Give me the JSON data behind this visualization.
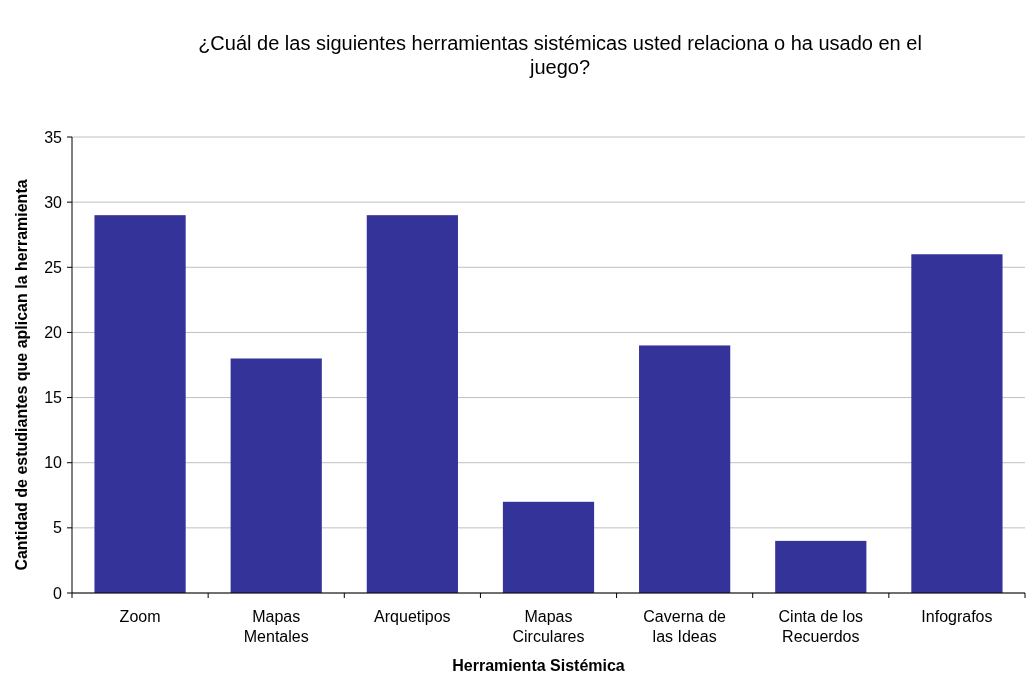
{
  "chart_data": {
    "type": "bar",
    "title": "¿Cuál de las siguientes herramientas sistémicas usted relaciona o ha usado en el juego?",
    "xlabel": "Herramienta Sistémica",
    "ylabel": "Cantidad de estudiantes que aplican la herramienta",
    "categories": [
      "Zoom",
      "Mapas Mentales",
      "Arquetipos",
      "Mapas Circulares",
      "Caverna de las Ideas",
      "Cinta de los Recuerdos",
      "Infografos"
    ],
    "values": [
      29,
      18,
      29,
      7,
      19,
      4,
      26
    ],
    "color": "#333399",
    "ylim": [
      0,
      35
    ],
    "yticks": [
      0,
      5,
      10,
      15,
      20,
      25,
      30,
      35
    ],
    "grid": "y"
  }
}
